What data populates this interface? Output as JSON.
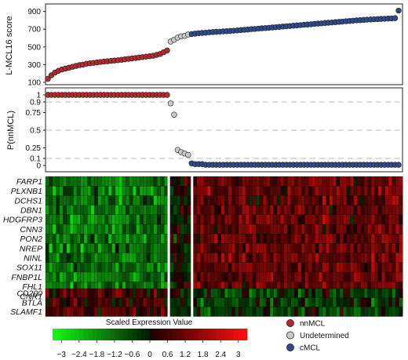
{
  "chart_data": [
    {
      "type": "scatter",
      "ylabel": "L-MCL16 score",
      "ylim": [
        100,
        950
      ],
      "yticks": [
        "100",
        "300",
        "500",
        "700",
        "900"
      ],
      "series": [
        {
          "name": "nnMCL",
          "color": "#b3282d",
          "values": [
            140,
            180,
            210,
            230,
            245,
            255,
            265,
            275,
            285,
            295,
            300,
            310,
            315,
            320,
            325,
            330,
            335,
            338,
            342,
            346,
            350,
            355,
            360,
            365,
            370,
            375,
            380,
            385,
            390,
            395,
            400,
            410,
            420,
            440,
            460
          ]
        },
        {
          "name": "Undetermined",
          "color": "#c9c9c9",
          "values": [
            560,
            580,
            605,
            620,
            625,
            640
          ]
        },
        {
          "name": "cMCL",
          "color": "#2e4a8a",
          "values": [
            645,
            650,
            655,
            658,
            660,
            665,
            668,
            670,
            672,
            675,
            678,
            680,
            683,
            686,
            690,
            693,
            696,
            700,
            703,
            706,
            710,
            713,
            716,
            720,
            723,
            726,
            730,
            733,
            736,
            740,
            743,
            746,
            750,
            753,
            756,
            760,
            763,
            766,
            770,
            773,
            776,
            780,
            783,
            786,
            790,
            793,
            796,
            800,
            802,
            805,
            808,
            810,
            812,
            814,
            816,
            818,
            820,
            822,
            825,
            910
          ]
        }
      ]
    },
    {
      "type": "scatter",
      "ylabel": "P(nnMCL)",
      "ylim": [
        0,
        1
      ],
      "yticks": [
        "0",
        "0.1",
        "0.25",
        "0.5",
        "0.75",
        "0.9",
        "1"
      ],
      "dashed_lines": [
        0.1,
        0.5,
        0.9
      ],
      "series": [
        {
          "name": "nnMCL",
          "color": "#b3282d",
          "values": [
            1,
            1,
            1,
            1,
            1,
            1,
            1,
            1,
            1,
            1,
            1,
            1,
            1,
            1,
            1,
            1,
            1,
            1,
            1,
            1,
            1,
            1,
            1,
            1,
            1,
            1,
            1,
            1,
            1,
            1,
            1,
            1,
            1,
            1,
            1
          ]
        },
        {
          "name": "Undetermined",
          "color": "#c9c9c9",
          "values": [
            0.88,
            0.72,
            0.22,
            0.19,
            0.17,
            0.15
          ]
        },
        {
          "name": "cMCL",
          "color": "#2e4a8a",
          "values": [
            0.03,
            0.02,
            0.02,
            0.02,
            0.01,
            0.01,
            0.01,
            0.01,
            0.01,
            0.01,
            0.01,
            0.01,
            0.01,
            0.01,
            0.01,
            0.01,
            0.01,
            0.01,
            0.01,
            0.01,
            0.01,
            0.01,
            0.01,
            0.01,
            0.01,
            0.01,
            0.01,
            0.01,
            0.01,
            0.01,
            0.01,
            0.01,
            0.01,
            0.01,
            0.01,
            0.01,
            0.01,
            0.01,
            0.01,
            0.01,
            0.01,
            0.01,
            0.01,
            0.01,
            0.01,
            0.01,
            0.01,
            0.01,
            0.01,
            0.01,
            0.01,
            0.01,
            0.01,
            0.01,
            0.01,
            0.01,
            0.01,
            0.01,
            0.01,
            0.01
          ]
        }
      ]
    },
    {
      "type": "heatmap",
      "genes_upper": [
        "FARP1",
        "PLXNB1",
        "DCHS1",
        "DBN1",
        "HDGFRP3",
        "CNN3",
        "PON2",
        "NREP",
        "NINL",
        "SOX11",
        "FNBP1L",
        "FHL1",
        "CNR1"
      ],
      "genes_lower": [
        "CD200",
        "BTLA",
        "SLAMF1"
      ],
      "group_sizes": [
        35,
        6,
        60
      ],
      "colorbar_title": "Scaled Expression Value",
      "colorbar_range": [
        -3.3,
        3.3
      ],
      "colorbar_ticks": [
        "−3",
        "−2.4",
        "−1.8",
        "−1.2",
        "−0.6",
        "0",
        "0.6",
        "1.2",
        "1.8",
        "2.4",
        "3"
      ],
      "colorbar_tick_values": [
        -3,
        -2.4,
        -1.8,
        -1.2,
        -0.6,
        0,
        0.6,
        1.2,
        1.8,
        2.4,
        3
      ]
    }
  ],
  "legend": [
    {
      "label": "nnMCL",
      "color": "#b3282d"
    },
    {
      "label": "Undetermined",
      "color": "#c9c9c9"
    },
    {
      "label": "cMCL",
      "color": "#2e4a8a"
    }
  ]
}
